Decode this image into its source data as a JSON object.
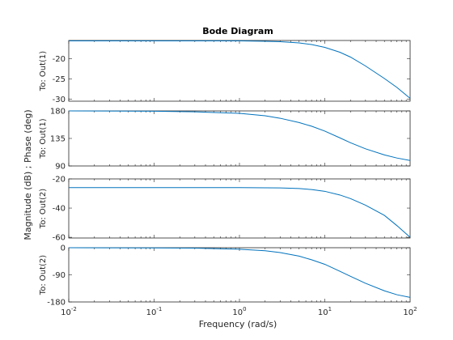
{
  "chart_data": {
    "type": "line",
    "title": "Bode Diagram",
    "xlabel": "Frequency  (rad/s)",
    "ylabel": "Magnitude (dB) ; Phase (deg)",
    "xscale": "log",
    "xlim": [
      0.01,
      100
    ],
    "x_ticks": [
      0.01,
      0.1,
      1,
      10,
      100
    ],
    "x_tick_labels": [
      {
        "base": "10",
        "exp": "-2"
      },
      {
        "base": "10",
        "exp": "-1"
      },
      {
        "base": "10",
        "exp": "0"
      },
      {
        "base": "10",
        "exp": "1"
      },
      {
        "base": "10",
        "exp": "2"
      }
    ],
    "line_color": "#0072BD",
    "grid": false,
    "panels": [
      {
        "label": "To: Out(1)",
        "quantity": "magnitude",
        "ylim": [
          -30.5,
          -15.5
        ],
        "yticks": [
          -20,
          -25,
          -30
        ],
        "series": {
          "x": [
            0.01,
            0.1,
            1,
            2,
            3,
            5,
            7,
            10,
            15,
            20,
            30,
            50,
            70,
            100
          ],
          "y": [
            -15.6,
            -15.6,
            -15.6,
            -15.7,
            -15.8,
            -16.1,
            -16.5,
            -17.2,
            -18.4,
            -19.6,
            -21.8,
            -24.9,
            -27.1,
            -29.8
          ]
        }
      },
      {
        "label": "To: Out(1)",
        "quantity": "phase",
        "ylim": [
          90,
          180
        ],
        "yticks": [
          180,
          135,
          90
        ],
        "series": {
          "x": [
            0.01,
            0.1,
            0.3,
            1,
            2,
            3,
            5,
            7,
            10,
            15,
            20,
            30,
            50,
            70,
            100
          ],
          "y": [
            180,
            179.5,
            178.5,
            176,
            172,
            168,
            161,
            155,
            147,
            136,
            128,
            118,
            108,
            103,
            99
          ]
        }
      },
      {
        "label": "To: Out(2)",
        "quantity": "magnitude",
        "ylim": [
          -60.5,
          -20
        ],
        "yticks": [
          -20,
          -40,
          -60
        ],
        "series": {
          "x": [
            0.01,
            0.1,
            1,
            3,
            5,
            7,
            10,
            15,
            20,
            30,
            50,
            70,
            100
          ],
          "y": [
            -26,
            -26,
            -26,
            -26.2,
            -26.6,
            -27.3,
            -28.5,
            -31,
            -33.5,
            -38,
            -45,
            -52,
            -60
          ]
        }
      },
      {
        "label": "To: Out(2)",
        "quantity": "phase",
        "ylim": [
          -180,
          0
        ],
        "yticks": [
          0,
          -90,
          -180
        ],
        "series": {
          "x": [
            0.01,
            0.1,
            0.3,
            1,
            2,
            3,
            5,
            7,
            10,
            15,
            20,
            30,
            50,
            70,
            100
          ],
          "y": [
            0,
            -0.5,
            -1.5,
            -5,
            -10,
            -16,
            -28,
            -40,
            -55,
            -78,
            -95,
            -118,
            -143,
            -156,
            -165
          ]
        }
      }
    ]
  }
}
